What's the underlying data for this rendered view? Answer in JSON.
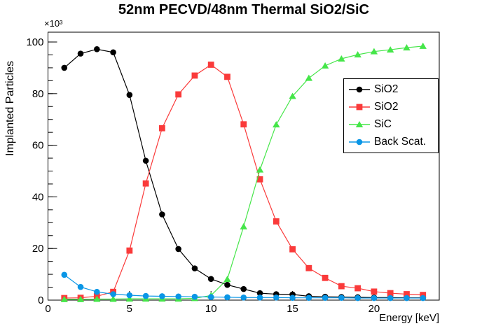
{
  "chart_data": {
    "type": "line",
    "title": "52nm PECVD/48nm Thermal SiO2/SiC",
    "xlabel": "Energy [keV]",
    "ylabel": "Implanted Particles",
    "y_multiplier": "×10³",
    "xlim": [
      0,
      24
    ],
    "ylim": [
      0,
      103.8
    ],
    "grid": false,
    "legend_position": "middle-right",
    "x_major_ticks": [
      0,
      5,
      10,
      15,
      20
    ],
    "x_minor_step": 1,
    "y_major_ticks": [
      0,
      20,
      40,
      60,
      80,
      100
    ],
    "y_minor_step": 5,
    "x": [
      1,
      2,
      3,
      4,
      5,
      6,
      7,
      8,
      9,
      10,
      11,
      12,
      13,
      14,
      15,
      16,
      17,
      18,
      19,
      20,
      21,
      22,
      23
    ],
    "series": [
      {
        "name": "SiO2",
        "marker": "circle",
        "color": "#000000",
        "values": [
          90,
          95.5,
          97.2,
          96,
          79.5,
          54,
          33.2,
          19.8,
          12.3,
          8.2,
          5.9,
          4.3,
          2.7,
          2.3,
          2.2,
          1.5,
          1.3,
          1.2,
          1.1,
          1.0,
          1.0,
          0.9,
          0.9
        ]
      },
      {
        "name": "SiO2",
        "marker": "square",
        "color": "#fa3a3a",
        "values": [
          0.8,
          0.9,
          1.5,
          3.2,
          19.2,
          45.2,
          66.6,
          79.7,
          87.0,
          91.2,
          86.5,
          68.1,
          46.8,
          30.5,
          19.7,
          12.4,
          8.6,
          5.4,
          4.6,
          3.3,
          2.7,
          2.3,
          2.0
        ]
      },
      {
        "name": "SiC",
        "marker": "triangle",
        "color": "#45e649",
        "values": [
          0.3,
          0.3,
          0.4,
          0.4,
          0.5,
          0.5,
          0.5,
          0.5,
          0.7,
          1.8,
          8.1,
          28.5,
          50.5,
          68.0,
          79.0,
          86.0,
          90.8,
          93.5,
          95.1,
          96.3,
          97.0,
          97.8,
          98.4
        ]
      },
      {
        "name": "Back Scat.",
        "marker": "circle",
        "color": "#0a96e6",
        "values": [
          9.8,
          5.1,
          3.2,
          2.3,
          1.9,
          1.6,
          1.5,
          1.4,
          1.3,
          1.2,
          1.1,
          1.0,
          1.0,
          1.0,
          0.9,
          0.9,
          0.9,
          0.9,
          0.8,
          0.8,
          0.8,
          0.8,
          0.8
        ]
      }
    ]
  }
}
